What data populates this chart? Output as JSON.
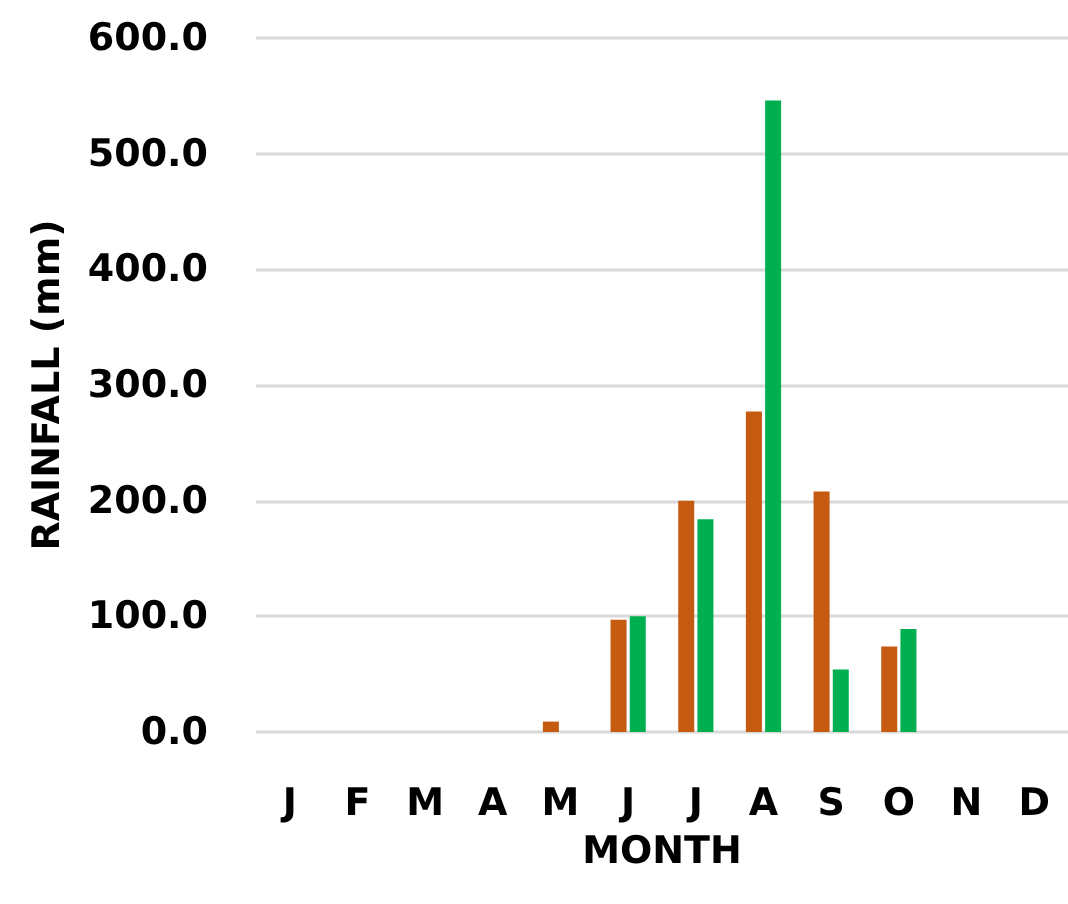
{
  "chart_data": {
    "type": "bar",
    "xlabel": "MONTH",
    "ylabel": "RAINFALL (mm)",
    "categories": [
      "J",
      "F",
      "M",
      "A",
      "M",
      "J",
      "J",
      "A",
      "S",
      "O",
      "N",
      "D"
    ],
    "series": [
      {
        "color": "#c55a11",
        "values": [
          0,
          0,
          0,
          0,
          9,
          97,
          200,
          277,
          208,
          74,
          0,
          0
        ]
      },
      {
        "color": "#00b050",
        "values": [
          0,
          0,
          0,
          0,
          0,
          100,
          184,
          546,
          54,
          89,
          0,
          0
        ]
      }
    ],
    "ylim": [
      0,
      600
    ],
    "yticks": [
      {
        "value": 0,
        "label": "0.0"
      },
      {
        "value": 100,
        "label": "100.0"
      },
      {
        "value": 200,
        "label": "200.0"
      },
      {
        "value": 300,
        "label": "300.0"
      },
      {
        "value": 400,
        "label": "400.0"
      },
      {
        "value": 500,
        "label": "500.0"
      },
      {
        "value": 600,
        "label": "600.0"
      }
    ],
    "grid": "y"
  }
}
